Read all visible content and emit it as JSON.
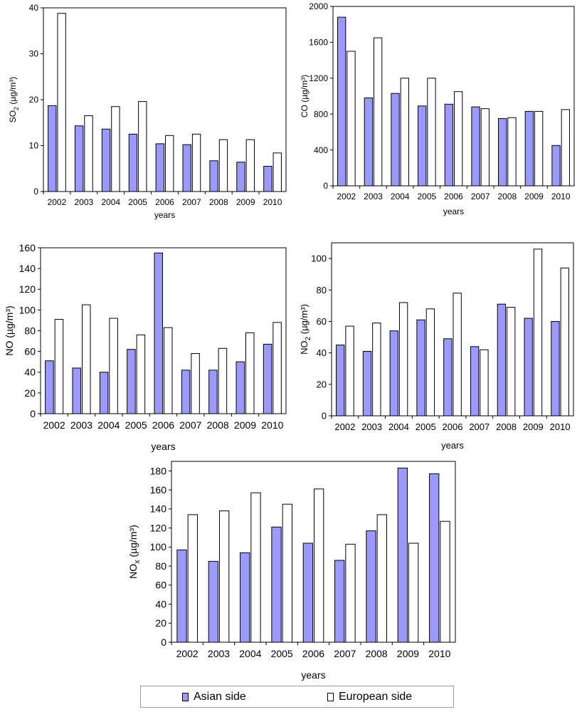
{
  "colors": {
    "asian": "#9999ff",
    "european": "#ffffff",
    "axis": "#000000"
  },
  "legend": {
    "asian_label": "Asian side",
    "european_label": "European side"
  },
  "chart_data": [
    {
      "type": "bar",
      "ylabel": "SO",
      "ylabel_sub": "2",
      "ylabel_unit": "(µg/m³)",
      "xlabel": "years",
      "ylim": [
        0,
        40
      ],
      "yticks": [
        0,
        10,
        20,
        30,
        40
      ],
      "categories": [
        "2002",
        "2003",
        "2004",
        "2005",
        "2006",
        "2007",
        "2008",
        "2009",
        "2010"
      ],
      "series": [
        {
          "name": "Asian side",
          "values": [
            18.7,
            14.3,
            13.6,
            12.5,
            10.4,
            10.2,
            6.7,
            6.4,
            5.5
          ]
        },
        {
          "name": "European side",
          "values": [
            38.8,
            16.5,
            18.5,
            19.6,
            12.2,
            12.5,
            11.3,
            11.3,
            8.4
          ]
        }
      ]
    },
    {
      "type": "bar",
      "ylabel": "CO",
      "ylabel_sub": "",
      "ylabel_unit": "(µg/m³)",
      "xlabel": "years",
      "ylim": [
        0,
        2000
      ],
      "yticks": [
        0,
        400,
        800,
        1200,
        1600,
        2000
      ],
      "categories": [
        "2002",
        "2003",
        "2004",
        "2005",
        "2006",
        "2007",
        "2008",
        "2009",
        "2010"
      ],
      "series": [
        {
          "name": "Asian side",
          "values": [
            1880,
            980,
            1030,
            890,
            910,
            880,
            750,
            830,
            450
          ]
        },
        {
          "name": "European side",
          "values": [
            1500,
            1650,
            1200,
            1200,
            1050,
            860,
            760,
            830,
            850
          ]
        }
      ]
    },
    {
      "type": "bar",
      "ylabel": "NO",
      "ylabel_sub": "",
      "ylabel_unit": "(µg/m³)",
      "xlabel": "years",
      "ylim": [
        0,
        160
      ],
      "yticks": [
        0,
        20,
        40,
        60,
        80,
        100,
        120,
        140,
        160
      ],
      "categories": [
        "2002",
        "2003",
        "2004",
        "2005",
        "2006",
        "2007",
        "2008",
        "2009",
        "2010"
      ],
      "series": [
        {
          "name": "Asian side",
          "values": [
            51,
            44,
            40,
            62,
            155,
            42,
            42,
            50,
            67
          ]
        },
        {
          "name": "European side",
          "values": [
            91,
            105,
            92,
            76,
            83,
            58,
            63,
            78,
            88
          ]
        }
      ]
    },
    {
      "type": "bar",
      "ylabel": "NO",
      "ylabel_sub": "2",
      "ylabel_unit": "(µg/m³)",
      "xlabel": "years",
      "ylim": [
        0,
        110
      ],
      "yticks": [
        0,
        20,
        40,
        60,
        80,
        100
      ],
      "categories": [
        "2002",
        "2003",
        "2004",
        "2005",
        "2006",
        "2007",
        "2008",
        "2009",
        "2010"
      ],
      "series": [
        {
          "name": "Asian side",
          "values": [
            45,
            41,
            54,
            61,
            49,
            44,
            71,
            62,
            60
          ]
        },
        {
          "name": "European side",
          "values": [
            57,
            59,
            72,
            68,
            78,
            42,
            69,
            106,
            94
          ]
        }
      ]
    },
    {
      "type": "bar",
      "ylabel": "NO",
      "ylabel_sub": "x",
      "ylabel_unit": "(µg/m³)",
      "xlabel": "years",
      "ylim": [
        0,
        190
      ],
      "yticks": [
        0,
        20,
        40,
        60,
        80,
        100,
        120,
        140,
        160,
        180
      ],
      "categories": [
        "2002",
        "2003",
        "2004",
        "2005",
        "2006",
        "2007",
        "2008",
        "2009",
        "2010"
      ],
      "series": [
        {
          "name": "Asian side",
          "values": [
            97,
            85,
            94,
            121,
            104,
            86,
            117,
            183,
            177
          ]
        },
        {
          "name": "European side",
          "values": [
            134,
            138,
            157,
            145,
            161,
            103,
            134,
            104,
            127
          ]
        }
      ]
    }
  ]
}
